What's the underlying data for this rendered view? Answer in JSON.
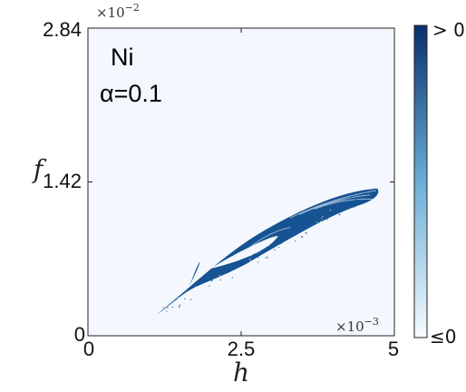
{
  "chart_data": {
    "type": "heatmap",
    "title": "",
    "xlabel": "h",
    "ylabel": "f",
    "x_ticks": [
      "0",
      "2.5",
      "5"
    ],
    "y_ticks": [
      "0",
      "1.42",
      "2.84"
    ],
    "xlim": [
      0,
      0.005
    ],
    "ylim": [
      0,
      0.0284
    ],
    "x_multiplier": "×10",
    "x_multiplier_exp": "−3",
    "y_multiplier": "×10",
    "y_multiplier_exp": "−2",
    "annotations": [
      "Ni",
      "α=0.1"
    ],
    "colorbar": {
      "top_label": "> 0",
      "bottom_label": "≤0"
    },
    "colors": {
      "background": "#f4f8fe",
      "positive": "#0a4a8c",
      "axes": "#222222"
    },
    "grid": false,
    "region_positive": {
      "description_points_h": [
        0.00115,
        0.003,
        0.0047,
        0.00455,
        0.0026,
        0.0012
      ],
      "description_points_f": [
        0.002,
        0.01,
        0.0136,
        0.012,
        0.0072,
        0.0022
      ]
    }
  }
}
